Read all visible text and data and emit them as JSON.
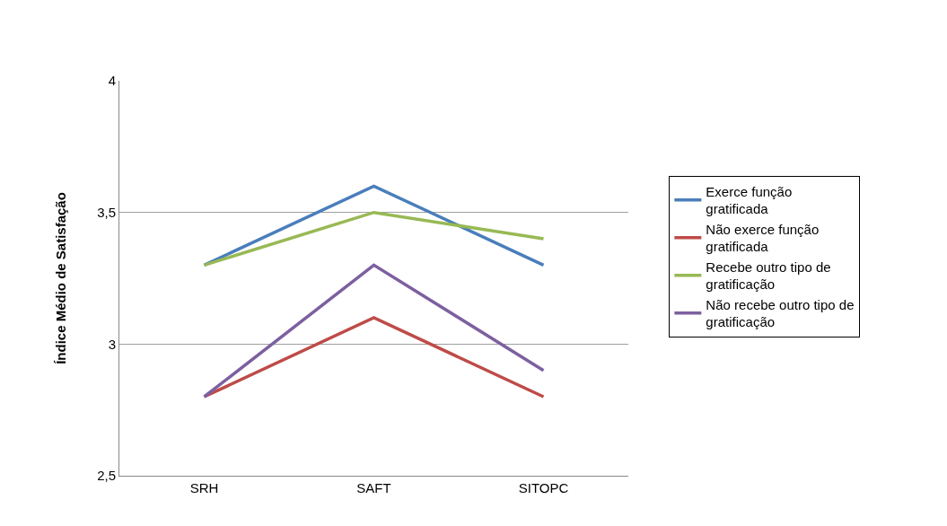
{
  "chart_data": {
    "type": "line",
    "ylabel": "Índice Médio de Satisfação",
    "categories": [
      "SRH",
      "SAFT",
      "SITOPC"
    ],
    "series": [
      {
        "name": "Exerce função gratificada",
        "color": "#4a7ebb",
        "values": [
          3.3,
          3.6,
          3.3
        ]
      },
      {
        "name": "Não exerce função gratificada",
        "color": "#be4b48",
        "values": [
          2.8,
          3.1,
          2.8
        ]
      },
      {
        "name": "Recebe outro tipo de gratificação",
        "color": "#98b954",
        "values": [
          3.3,
          3.5,
          3.4
        ]
      },
      {
        "name": "Não recebe outro tipo de gratificação",
        "color": "#7d60a0",
        "values": [
          2.8,
          3.3,
          2.9
        ]
      }
    ],
    "ylim": [
      2.5,
      4
    ],
    "yticks": [
      {
        "value": 2.5,
        "label": "2,5"
      },
      {
        "value": 3,
        "label": "3"
      },
      {
        "value": 3.5,
        "label": "3,5"
      },
      {
        "value": 4,
        "label": "4"
      }
    ],
    "grid": "y",
    "legend": "right",
    "marker": "none",
    "line_style": "solid"
  }
}
